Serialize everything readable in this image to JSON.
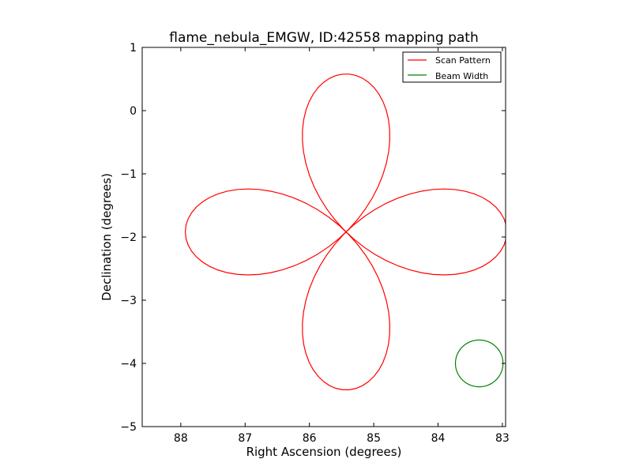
{
  "chart_data": {
    "type": "line",
    "title": "flame_nebula_EMGW, ID:42558 mapping path",
    "xlabel": "Right Ascension (degrees)",
    "ylabel": "Declination (degrees)",
    "xlim": [
      88.6,
      82.95
    ],
    "ylim": [
      -5,
      1
    ],
    "x_inverted": true,
    "xticks": [
      88,
      87,
      86,
      85,
      84,
      83
    ],
    "yticks": [
      1,
      0,
      -1,
      -2,
      -3,
      -4,
      -5
    ],
    "xtick_labels": [
      "88",
      "87",
      "86",
      "85",
      "84",
      "83"
    ],
    "ytick_labels": [
      "1",
      "0",
      "−1",
      "−2",
      "−3",
      "−4",
      "−5"
    ],
    "grid": false,
    "legend_position": "upper right",
    "legend": [
      "Scan Pattern",
      "Beam Width"
    ],
    "series": [
      {
        "name": "Scan Pattern",
        "color": "#ff0000",
        "kind": "rose-curve",
        "center_ra": 85.43,
        "center_dec": -1.92,
        "extent_ra": 2.5,
        "extent_dec": 2.5,
        "petals": 4,
        "orientation": "axis-aligned",
        "samples": 150
      },
      {
        "name": "Beam Width",
        "color": "#008000",
        "kind": "circle",
        "center_ra": 83.36,
        "center_dec": -4.0,
        "radius_deg": 0.37
      }
    ]
  }
}
